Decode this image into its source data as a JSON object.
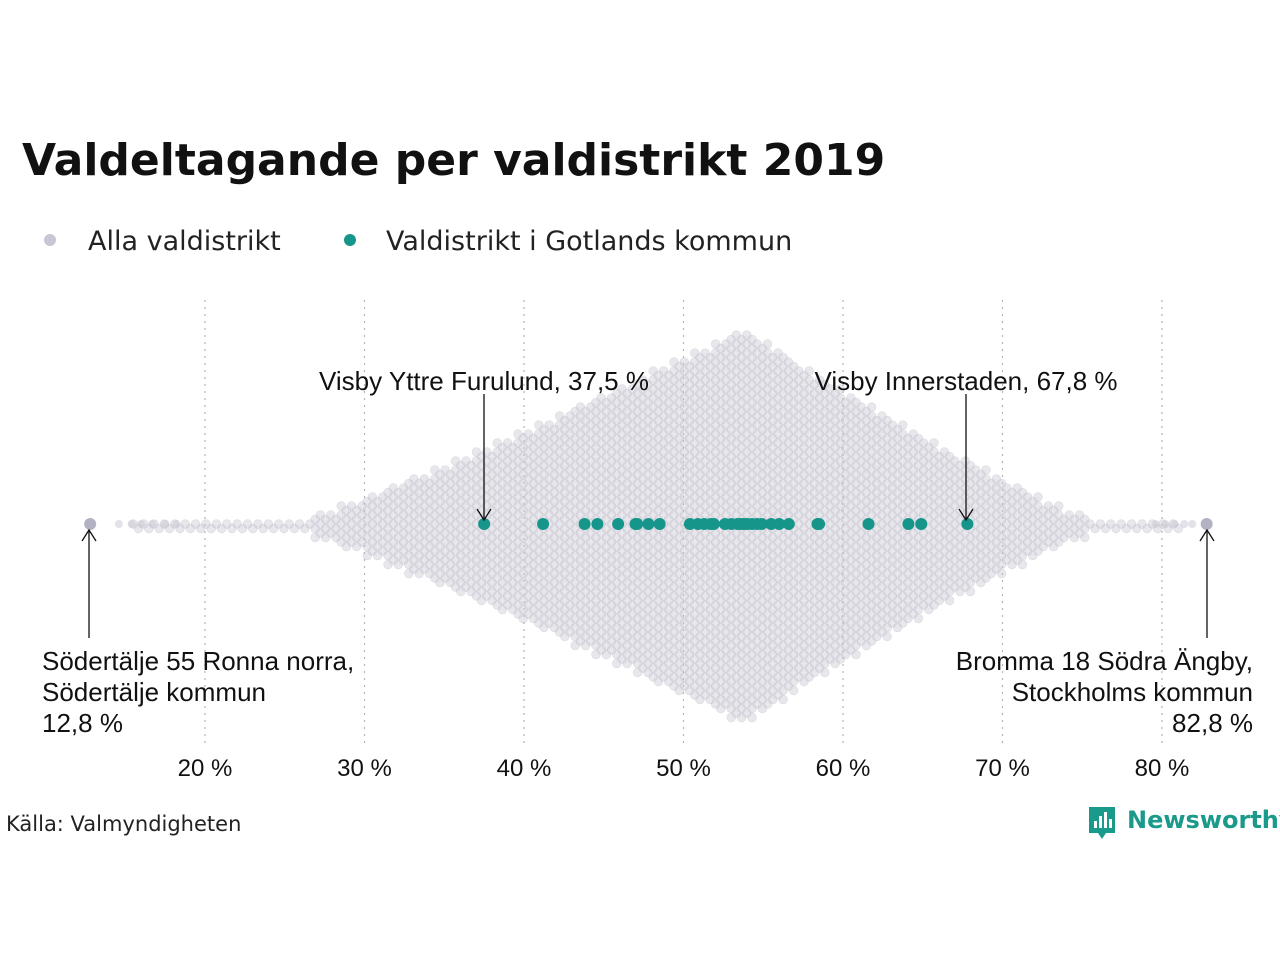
{
  "chart_data": {
    "type": "scatter",
    "title": "Valdeltagande per valdistrikt 2019",
    "xlabel": "",
    "ylabel": "",
    "xlim": [
      10,
      85
    ],
    "x_ticks": [
      20,
      30,
      40,
      50,
      60,
      70,
      80
    ],
    "x_tick_labels": [
      "20 %",
      "30 %",
      "40 %",
      "50 %",
      "60 %",
      "70 %",
      "80 %"
    ],
    "grid": "vertical-dotted",
    "legend_placement": "top-left",
    "legend": [
      {
        "name": "Alla valdistrikt",
        "color": "#c7c6d2"
      },
      {
        "name": "Valdistrikt i Gotlands kommun",
        "color": "#16968a"
      }
    ],
    "series": [
      {
        "name": "Alla valdistrikt",
        "color": "#c7c6d2",
        "distribution": "beeswarm",
        "min": 12.8,
        "max": 82.8,
        "peak": 53.8
      },
      {
        "name": "Valdistrikt i Gotlands kommun",
        "color": "#16968a",
        "values": [
          37.5,
          41.2,
          43.8,
          44.6,
          45.9,
          47.0,
          47.1,
          47.8,
          48.5,
          50.4,
          50.9,
          51.3,
          51.7,
          51.9,
          52.6,
          53.0,
          53.4,
          53.6,
          53.8,
          54.0,
          54.3,
          54.6,
          54.9,
          55.5,
          56.0,
          56.6,
          58.4,
          58.5,
          61.6,
          64.1,
          64.9,
          67.8
        ]
      }
    ],
    "annotations": [
      {
        "lines": [
          "Visby Yttre Furulund, 37,5 %"
        ],
        "x": 37.5
      },
      {
        "lines": [
          "Visby Innerstaden, 67,8 %"
        ],
        "x": 67.8
      },
      {
        "lines": [
          "Södertälje 55 Ronna norra,",
          "Södertälje kommun",
          "12,8 %"
        ],
        "x": 12.8
      },
      {
        "lines": [
          "Bromma 18 Södra Ängby,",
          "Stockholms kommun",
          "82,8 %"
        ],
        "x": 82.8
      }
    ]
  },
  "footer": {
    "source": "Källa: Valmyndigheten",
    "brand": "Newsworthy"
  }
}
